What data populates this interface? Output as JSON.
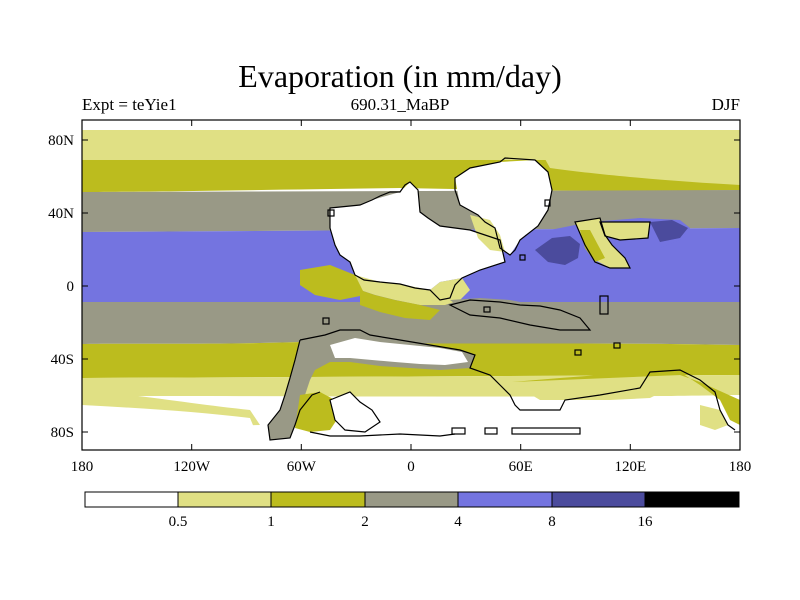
{
  "title": "Evaporation (in mm/day)",
  "subtitle_left": "Expt = teYie1",
  "subtitle_center": "690.31_MaBP",
  "subtitle_right": "DJF",
  "lat_labels": [
    "80N",
    "40N",
    "0",
    "40S",
    "80S"
  ],
  "lon_labels": [
    "180",
    "120W",
    "60W",
    "0",
    "60E",
    "120E",
    "180"
  ],
  "colorbar": {
    "labels": [
      "0.5",
      "1",
      "2",
      "4",
      "8",
      "16"
    ],
    "colors": [
      "#ffffff",
      "#e0e084",
      "#bcbc1e",
      "#999986",
      "#7474e0",
      "#4b4b9d",
      "#000000"
    ]
  }
}
